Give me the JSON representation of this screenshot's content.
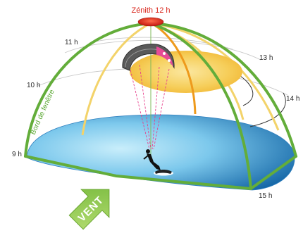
{
  "labels": {
    "zenith": "Zénith 12 h",
    "h9": "9 h",
    "h10": "10 h",
    "h11": "11 h",
    "h13": "13 h",
    "h14": "14 h",
    "h15": "15 h",
    "window_edge": "Bord de fenêtre",
    "wind": "VENT"
  },
  "colors": {
    "edge_green": "#63ad3a",
    "arc_yellow": "#f3d36a",
    "arc_orange": "#ee9a1c",
    "power_zone": "#f7c64d",
    "sea_light": "#8fd3f1",
    "sea_dark": "#1778b5",
    "zenith_red": "#e2231a",
    "line_pink": "#e8408c",
    "wind_arrow": "#8cc84b"
  },
  "icons": [
    "kite-icon",
    "kitesurfer-icon",
    "wind-arrow-icon"
  ]
}
